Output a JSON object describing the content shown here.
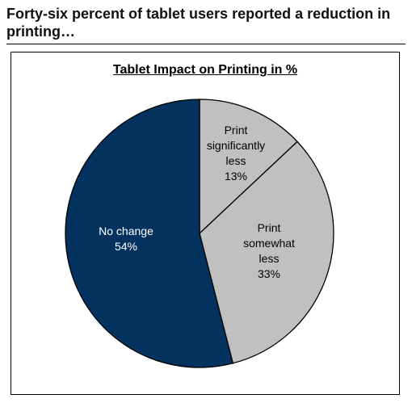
{
  "headline": "Forty-six percent of tablet users reported a reduction in printing…",
  "chart_data": {
    "type": "pie",
    "title": "Tablet Impact on Printing in %",
    "slices": [
      {
        "label": [
          "Print",
          "significantly",
          "less"
        ],
        "value": 13,
        "value_label": "13%",
        "color": "#c0c0c0",
        "text_color": "#000000"
      },
      {
        "label": [
          "Print",
          "somewhat",
          "less"
        ],
        "value": 33,
        "value_label": "33%",
        "color": "#c0c0c0",
        "text_color": "#000000"
      },
      {
        "label": [
          "No change"
        ],
        "value": 54,
        "value_label": "54%",
        "color": "#04325e",
        "text_color": "#ffffff"
      }
    ],
    "start": "12 o'clock",
    "direction": "clockwise",
    "slice_border_color": "#000000",
    "legend": "none"
  }
}
